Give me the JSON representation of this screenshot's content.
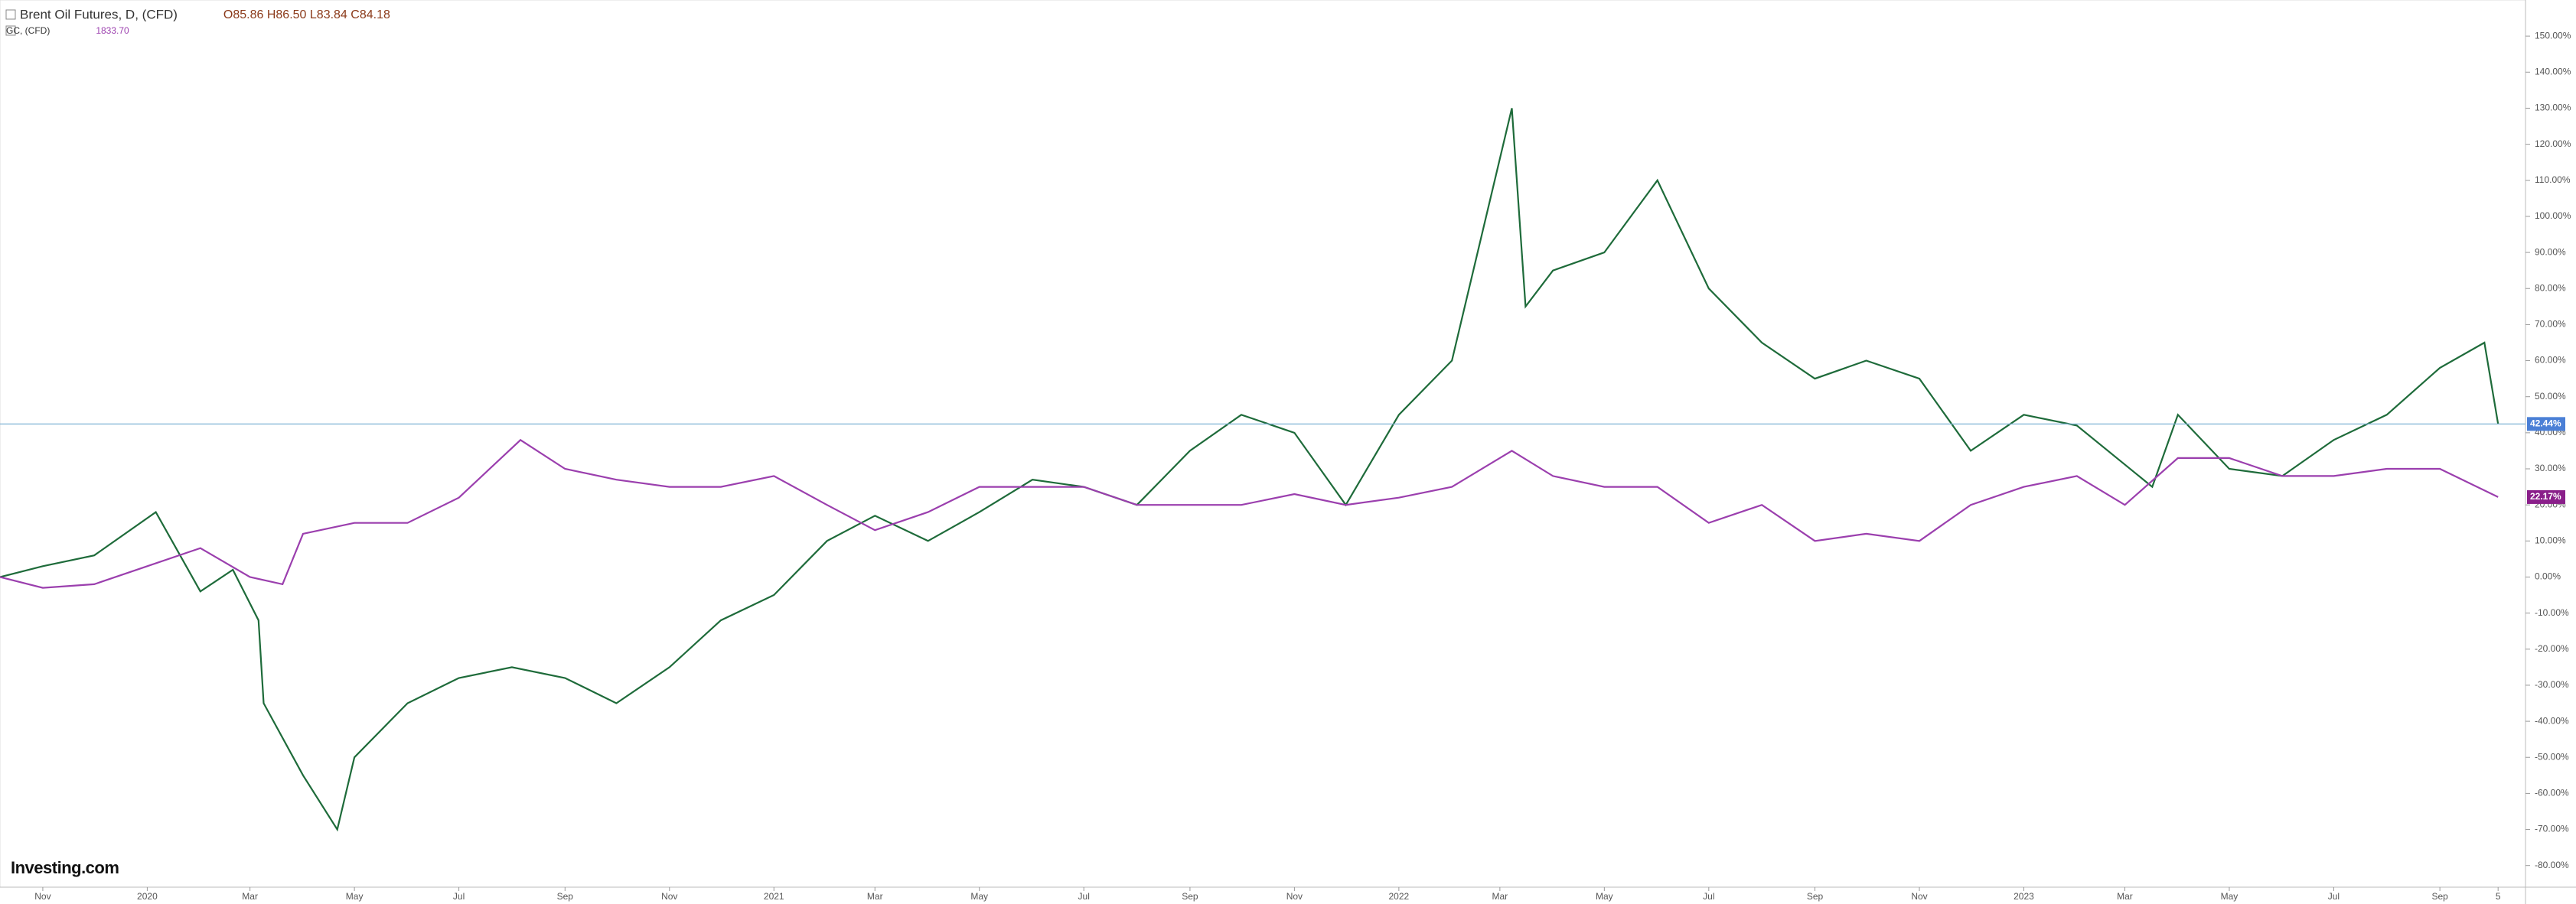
{
  "chart_data": {
    "type": "line",
    "brand": "Investing.com",
    "series": [
      {
        "name": "Brent Oil Futures, D, (CFD)",
        "quote": "O85.86 H86.50 L83.84 C84.18",
        "color": "#1e6b3a",
        "last_label": "42.44%",
        "tag_color": "#4a7fd6",
        "x": [
          "2019-10-07",
          "2019-11",
          "2019-12",
          "2020-01-06",
          "2020-02",
          "2020-02-20",
          "2020-03-06",
          "2020-03-09",
          "2020-04",
          "2020-04-21",
          "2020-05",
          "2020-06",
          "2020-07",
          "2020-08",
          "2020-09",
          "2020-10",
          "2020-11",
          "2020-12",
          "2021-01",
          "2021-02",
          "2021-03",
          "2021-04",
          "2021-05",
          "2021-06",
          "2021-07",
          "2021-08",
          "2021-09",
          "2021-10",
          "2021-11",
          "2021-12",
          "2022-01",
          "2022-02",
          "2022-03-08",
          "2022-03-16",
          "2022-04",
          "2022-05",
          "2022-06",
          "2022-07",
          "2022-08",
          "2022-09",
          "2022-10",
          "2022-11",
          "2022-12",
          "2023-01",
          "2023-02",
          "2023-03-17",
          "2023-04",
          "2023-05",
          "2023-06",
          "2023-07",
          "2023-08",
          "2023-09",
          "2023-09-27",
          "2023-10-05"
        ],
        "values": [
          0,
          3,
          6,
          18,
          -4,
          2,
          -12,
          -35,
          -55,
          -70,
          -50,
          -35,
          -28,
          -25,
          -28,
          -35,
          -25,
          -12,
          -5,
          10,
          17,
          10,
          18,
          27,
          25,
          20,
          35,
          45,
          40,
          20,
          45,
          60,
          130,
          75,
          85,
          90,
          110,
          80,
          65,
          55,
          60,
          55,
          35,
          45,
          42,
          25,
          45,
          30,
          28,
          38,
          45,
          58,
          65,
          42.44
        ]
      },
      {
        "name": "GC, (CFD)",
        "quote": "1833.70",
        "color": "#9b3fae",
        "last_label": "22.17%",
        "tag_color": "#8a1f8a",
        "x": [
          "2019-10-07",
          "2019-11",
          "2019-12",
          "2020-01",
          "2020-02",
          "2020-03",
          "2020-03-20",
          "2020-04",
          "2020-05",
          "2020-06",
          "2020-07",
          "2020-08-06",
          "2020-09",
          "2020-10",
          "2020-11",
          "2020-12",
          "2021-01",
          "2021-02",
          "2021-03",
          "2021-04",
          "2021-05",
          "2021-06",
          "2021-07",
          "2021-08",
          "2021-09",
          "2021-10",
          "2021-11",
          "2021-12",
          "2022-01",
          "2022-02",
          "2022-03-08",
          "2022-04",
          "2022-05",
          "2022-06",
          "2022-07",
          "2022-08",
          "2022-09",
          "2022-10",
          "2022-11",
          "2022-12",
          "2023-01",
          "2023-02",
          "2023-03",
          "2023-04",
          "2023-05",
          "2023-06",
          "2023-07",
          "2023-08",
          "2023-09",
          "2023-10-05"
        ],
        "values": [
          0,
          -3,
          -2,
          3,
          8,
          0,
          -2,
          12,
          15,
          15,
          22,
          38,
          30,
          27,
          25,
          25,
          28,
          20,
          13,
          18,
          25,
          25,
          25,
          20,
          20,
          20,
          23,
          20,
          22,
          25,
          35,
          28,
          25,
          25,
          15,
          20,
          10,
          12,
          10,
          20,
          25,
          28,
          20,
          33,
          33,
          28,
          28,
          30,
          30,
          22.17
        ]
      }
    ],
    "xlim": [
      "2019-10-07",
      "2023-10-21"
    ],
    "xticks": [
      {
        "value": "2019-11",
        "label": "Nov"
      },
      {
        "value": "2020-01",
        "label": "2020"
      },
      {
        "value": "2020-03",
        "label": "Mar"
      },
      {
        "value": "2020-05",
        "label": "May"
      },
      {
        "value": "2020-07",
        "label": "Jul"
      },
      {
        "value": "2020-09",
        "label": "Sep"
      },
      {
        "value": "2020-11",
        "label": "Nov"
      },
      {
        "value": "2021-01",
        "label": "2021"
      },
      {
        "value": "2021-03",
        "label": "Mar"
      },
      {
        "value": "2021-05",
        "label": "May"
      },
      {
        "value": "2021-07",
        "label": "Jul"
      },
      {
        "value": "2021-09",
        "label": "Sep"
      },
      {
        "value": "2021-11",
        "label": "Nov"
      },
      {
        "value": "2022-01",
        "label": "2022"
      },
      {
        "value": "2022-03",
        "label": "Mar"
      },
      {
        "value": "2022-05",
        "label": "May"
      },
      {
        "value": "2022-07",
        "label": "Jul"
      },
      {
        "value": "2022-09",
        "label": "Sep"
      },
      {
        "value": "2022-11",
        "label": "Nov"
      },
      {
        "value": "2023-01",
        "label": "2023"
      },
      {
        "value": "2023-03",
        "label": "Mar"
      },
      {
        "value": "2023-05",
        "label": "May"
      },
      {
        "value": "2023-07",
        "label": "Jul"
      },
      {
        "value": "2023-09",
        "label": "Sep"
      },
      {
        "value": "2023-10-05",
        "label": "5"
      }
    ],
    "ylim": [
      -86,
      160
    ],
    "yticks": [
      {
        "value": 150,
        "label": "150.00%"
      },
      {
        "value": 140,
        "label": "140.00%"
      },
      {
        "value": 130,
        "label": "130.00%"
      },
      {
        "value": 120,
        "label": "120.00%"
      },
      {
        "value": 110,
        "label": "110.00%"
      },
      {
        "value": 100,
        "label": "100.00%"
      },
      {
        "value": 90,
        "label": "90.00%"
      },
      {
        "value": 80,
        "label": "80.00%"
      },
      {
        "value": 70,
        "label": "70.00%"
      },
      {
        "value": 60,
        "label": "60.00%"
      },
      {
        "value": 50,
        "label": "50.00%"
      },
      {
        "value": 40,
        "label": "40.00%"
      },
      {
        "value": 30,
        "label": "30.00%"
      },
      {
        "value": 20,
        "label": "20.00%"
      },
      {
        "value": 10,
        "label": "10.00%"
      },
      {
        "value": 0,
        "label": "0.00%"
      },
      {
        "value": -10,
        "label": "-10.00%"
      },
      {
        "value": -20,
        "label": "-20.00%"
      },
      {
        "value": -30,
        "label": "-30.00%"
      },
      {
        "value": -40,
        "label": "-40.00%"
      },
      {
        "value": -50,
        "label": "-50.00%"
      },
      {
        "value": -60,
        "label": "-60.00%"
      },
      {
        "value": -70,
        "label": "-70.00%"
      },
      {
        "value": -80,
        "label": "-80.00%"
      }
    ]
  }
}
